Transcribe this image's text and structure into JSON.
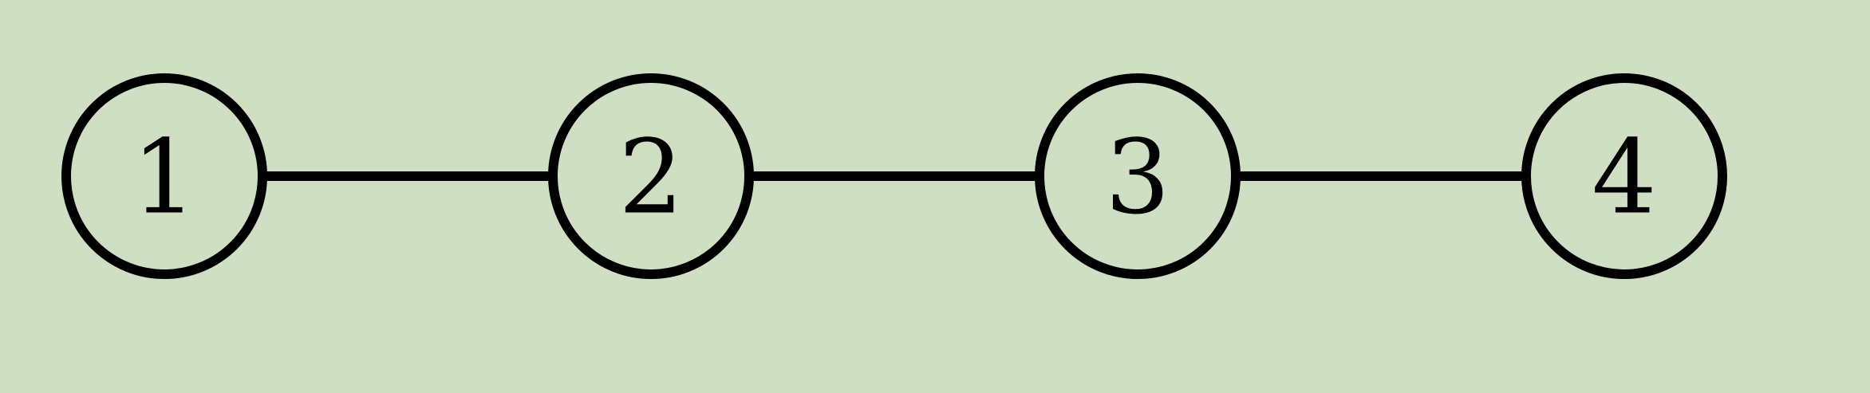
{
  "colors": {
    "background": "#cfdfc4",
    "stroke": "#000000",
    "text": "#000000"
  },
  "graph": {
    "nodes": [
      {
        "id": "1",
        "label": "1"
      },
      {
        "id": "2",
        "label": "2"
      },
      {
        "id": "3",
        "label": "3"
      },
      {
        "id": "4",
        "label": "4"
      }
    ],
    "edges": [
      {
        "from": "1",
        "to": "2"
      },
      {
        "from": "2",
        "to": "3"
      },
      {
        "from": "3",
        "to": "4"
      }
    ]
  }
}
